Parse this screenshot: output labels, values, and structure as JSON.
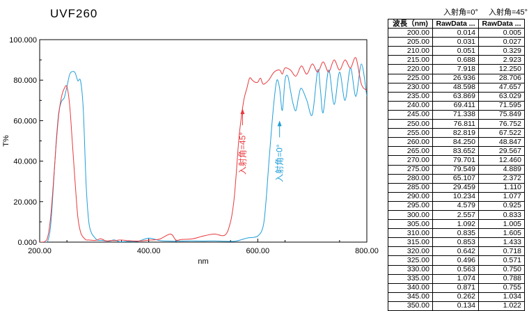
{
  "app_title": "UVF260",
  "colors": {
    "red_series": "#e8383c",
    "blue_series": "#1f9ed8",
    "axis": "#000000"
  },
  "table": {
    "header_labels": [
      "入射角=0°",
      "入射角=45°"
    ],
    "columns": [
      "波長（nm)",
      "RawData ...",
      "RawData ..."
    ],
    "rows": [
      [
        "200.00",
        "0.014",
        "0.005"
      ],
      [
        "205.00",
        "0.031",
        "0.027"
      ],
      [
        "210.00",
        "0.051",
        "0.329"
      ],
      [
        "215.00",
        "0.688",
        "2.923"
      ],
      [
        "220.00",
        "7.918",
        "12.250"
      ],
      [
        "225.00",
        "26.936",
        "28.706"
      ],
      [
        "230.00",
        "48.598",
        "47.657"
      ],
      [
        "235.00",
        "63.869",
        "63.029"
      ],
      [
        "240.00",
        "69.411",
        "71.595"
      ],
      [
        "245.00",
        "71.338",
        "75.849"
      ],
      [
        "250.00",
        "76.811",
        "76.752"
      ],
      [
        "255.00",
        "82.819",
        "67.522"
      ],
      [
        "260.00",
        "84.250",
        "48.847"
      ],
      [
        "265.00",
        "83.652",
        "29.567"
      ],
      [
        "270.00",
        "79.701",
        "12.460"
      ],
      [
        "275.00",
        "79.549",
        "4.889"
      ],
      [
        "280.00",
        "65.107",
        "2.372"
      ],
      [
        "285.00",
        "29.459",
        "1.110"
      ],
      [
        "290.00",
        "10.234",
        "1.077"
      ],
      [
        "295.00",
        "4.579",
        "0.925"
      ],
      [
        "300.00",
        "2.557",
        "0.833"
      ],
      [
        "305.00",
        "1.092",
        "1.005"
      ],
      [
        "310.00",
        "0.835",
        "1.605"
      ],
      [
        "315.00",
        "0.853",
        "1.433"
      ],
      [
        "320.00",
        "0.642",
        "0.718"
      ],
      [
        "325.00",
        "0.496",
        "0.571"
      ],
      [
        "330.00",
        "0.563",
        "0.750"
      ],
      [
        "335.00",
        "1.074",
        "0.788"
      ],
      [
        "340.00",
        "0.871",
        "0.755"
      ],
      [
        "345.00",
        "0.262",
        "1.034"
      ],
      [
        "350.00",
        "0.134",
        "1.022"
      ]
    ]
  },
  "chart_data": {
    "type": "line",
    "xlabel": "nm",
    "ylabel": "T%",
    "xlim": [
      200,
      800
    ],
    "ylim": [
      0,
      100
    ],
    "x_ticks": [
      "200.00",
      "400.00",
      "600.00",
      "800.00"
    ],
    "y_ticks": [
      "0.000",
      "20.000",
      "40.000",
      "60.000",
      "80.000",
      "100.000"
    ],
    "grid": false,
    "series": [
      {
        "name": "入射角=45°",
        "color": "#e8383c",
        "x": [
          200,
          210,
          215,
          220,
          225,
          230,
          235,
          240,
          245,
          250,
          255,
          260,
          265,
          270,
          275,
          280,
          285,
          290,
          295,
          300,
          305,
          310,
          315,
          320,
          325,
          330,
          335,
          340,
          345,
          350,
          360,
          380,
          400,
          420,
          440,
          450,
          460,
          480,
          500,
          520,
          540,
          550,
          556,
          560,
          565,
          570,
          575,
          580,
          585,
          590,
          595,
          600,
          605,
          610,
          620,
          630,
          640,
          645,
          650,
          660,
          670,
          680,
          690,
          700,
          710,
          720,
          730,
          740,
          750,
          760,
          770,
          780,
          790,
          800
        ],
        "y": [
          0.005,
          0.329,
          2.923,
          12.25,
          28.706,
          47.657,
          63.029,
          71.595,
          75.849,
          76.752,
          67.522,
          48.847,
          29.567,
          12.46,
          4.889,
          2.372,
          1.11,
          1.077,
          0.925,
          0.833,
          1.005,
          1.605,
          1.433,
          0.718,
          0.571,
          0.75,
          0.788,
          0.755,
          1.034,
          1.022,
          0.8,
          0.5,
          1.0,
          1.5,
          4.0,
          1.0,
          1.3,
          1.6,
          3.0,
          4.0,
          3.5,
          10,
          20,
          32,
          50,
          62,
          71,
          76,
          81,
          80,
          79,
          79,
          81,
          78,
          80,
          84,
          85,
          83,
          86,
          85,
          82,
          87,
          83,
          88,
          84,
          89,
          84,
          90,
          85,
          90,
          86,
          91,
          78,
          75
        ]
      },
      {
        "name": "入射角=0°",
        "color": "#1f9ed8",
        "x": [
          200,
          210,
          215,
          220,
          225,
          230,
          235,
          240,
          245,
          250,
          255,
          260,
          265,
          270,
          275,
          280,
          285,
          290,
          295,
          300,
          305,
          310,
          315,
          320,
          325,
          330,
          335,
          340,
          345,
          350,
          360,
          380,
          400,
          420,
          440,
          460,
          480,
          500,
          520,
          540,
          560,
          580,
          600,
          610,
          615,
          620,
          625,
          630,
          635,
          640,
          645,
          650,
          655,
          660,
          665,
          670,
          675,
          680,
          690,
          700,
          710,
          715,
          720,
          730,
          740,
          750,
          760,
          770,
          780,
          790,
          800
        ],
        "y": [
          0.014,
          0.051,
          0.688,
          7.918,
          26.936,
          48.598,
          63.869,
          69.411,
          71.338,
          76.811,
          82.819,
          84.25,
          83.652,
          79.701,
          79.549,
          65.107,
          29.459,
          10.234,
          4.579,
          2.557,
          1.092,
          0.835,
          0.853,
          0.642,
          0.496,
          0.563,
          1.074,
          0.871,
          0.262,
          0.134,
          0.3,
          0.4,
          2.0,
          0.8,
          0.5,
          0.5,
          0.6,
          0.5,
          0.6,
          0.4,
          0.5,
          2,
          3,
          8,
          20,
          38,
          55,
          70,
          80,
          76,
          65,
          80,
          82,
          75,
          68,
          65,
          72,
          76,
          70,
          63,
          85,
          75,
          64,
          85,
          68,
          84,
          70,
          86,
          72,
          88,
          72
        ]
      }
    ],
    "annotations": [
      {
        "text": "入射角=45°",
        "color": "#e8383c",
        "target": [
          572,
          66
        ]
      },
      {
        "text": "入射角=0°",
        "color": "#1f9ed8",
        "target": [
          640,
          60
        ]
      }
    ]
  }
}
